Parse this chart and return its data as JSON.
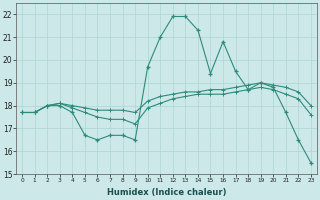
{
  "xlabel": "Humidex (Indice chaleur)",
  "x": [
    0,
    1,
    2,
    3,
    4,
    5,
    6,
    7,
    8,
    9,
    10,
    11,
    12,
    13,
    14,
    15,
    16,
    17,
    18,
    19,
    20,
    21,
    22,
    23
  ],
  "line1": [
    17.7,
    17.7,
    18.0,
    18.0,
    17.7,
    16.7,
    16.5,
    16.7,
    16.7,
    16.5,
    19.7,
    21.0,
    21.9,
    21.9,
    21.3,
    19.4,
    20.8,
    19.5,
    18.7,
    19.0,
    18.8,
    17.7,
    16.5,
    15.5
  ],
  "line2": [
    17.7,
    17.7,
    18.0,
    18.1,
    18.0,
    17.9,
    17.8,
    17.8,
    17.8,
    17.7,
    18.2,
    18.4,
    18.5,
    18.6,
    18.6,
    18.7,
    18.7,
    18.8,
    18.9,
    19.0,
    18.9,
    18.8,
    18.6,
    18.0
  ],
  "line3": [
    17.7,
    17.7,
    18.0,
    18.1,
    17.9,
    17.7,
    17.5,
    17.4,
    17.4,
    17.2,
    17.9,
    18.1,
    18.3,
    18.4,
    18.5,
    18.5,
    18.5,
    18.6,
    18.7,
    18.8,
    18.7,
    18.5,
    18.3,
    17.6
  ],
  "line_color": "#2e8b7a",
  "bg_color": "#cce8e8",
  "grid_color": "#aad4d4",
  "ylim": [
    15,
    22.5
  ],
  "xlim": [
    -0.5,
    23.5
  ],
  "yticks": [
    15,
    16,
    17,
    18,
    19,
    20,
    21,
    22
  ],
  "xticks": [
    0,
    1,
    2,
    3,
    4,
    5,
    6,
    7,
    8,
    9,
    10,
    11,
    12,
    13,
    14,
    15,
    16,
    17,
    18,
    19,
    20,
    21,
    22,
    23
  ]
}
